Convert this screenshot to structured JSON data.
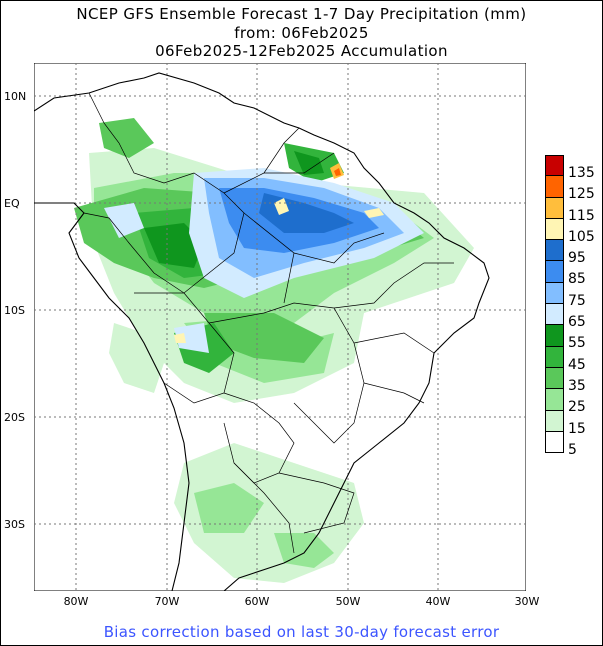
{
  "title": {
    "line1": "NCEP GFS Ensemble Forecast 1-7 Day Precipitation (mm)",
    "line2": "from: 06Feb2025",
    "line3": "06Feb2025-12Feb2025 Accumulation"
  },
  "axes": {
    "x_ticks": [
      "80W",
      "70W",
      "60W",
      "50W",
      "40W",
      "30W"
    ],
    "y_ticks": [
      "10N",
      "EQ",
      "10S",
      "20S",
      "30S"
    ]
  },
  "legend": {
    "levels": [
      {
        "label": "135",
        "color": "#c80000"
      },
      {
        "label": "125",
        "color": "#ff6400"
      },
      {
        "label": "115",
        "color": "#ffbe3c"
      },
      {
        "label": "105",
        "color": "#fff5b4"
      },
      {
        "label": "95",
        "color": "#1e6ecd"
      },
      {
        "label": "85",
        "color": "#3c8cf0"
      },
      {
        "label": "75",
        "color": "#82beff"
      },
      {
        "label": "65",
        "color": "#d2ebff"
      },
      {
        "label": "55",
        "color": "#0f961e"
      },
      {
        "label": "45",
        "color": "#32b43c"
      },
      {
        "label": "35",
        "color": "#5ac85a"
      },
      {
        "label": "25",
        "color": "#96e696"
      },
      {
        "label": "15",
        "color": "#d2f5d2"
      },
      {
        "label": "5",
        "color": "#ffffff"
      }
    ]
  },
  "footer": "Bias correction based on last 30-day forecast error"
}
